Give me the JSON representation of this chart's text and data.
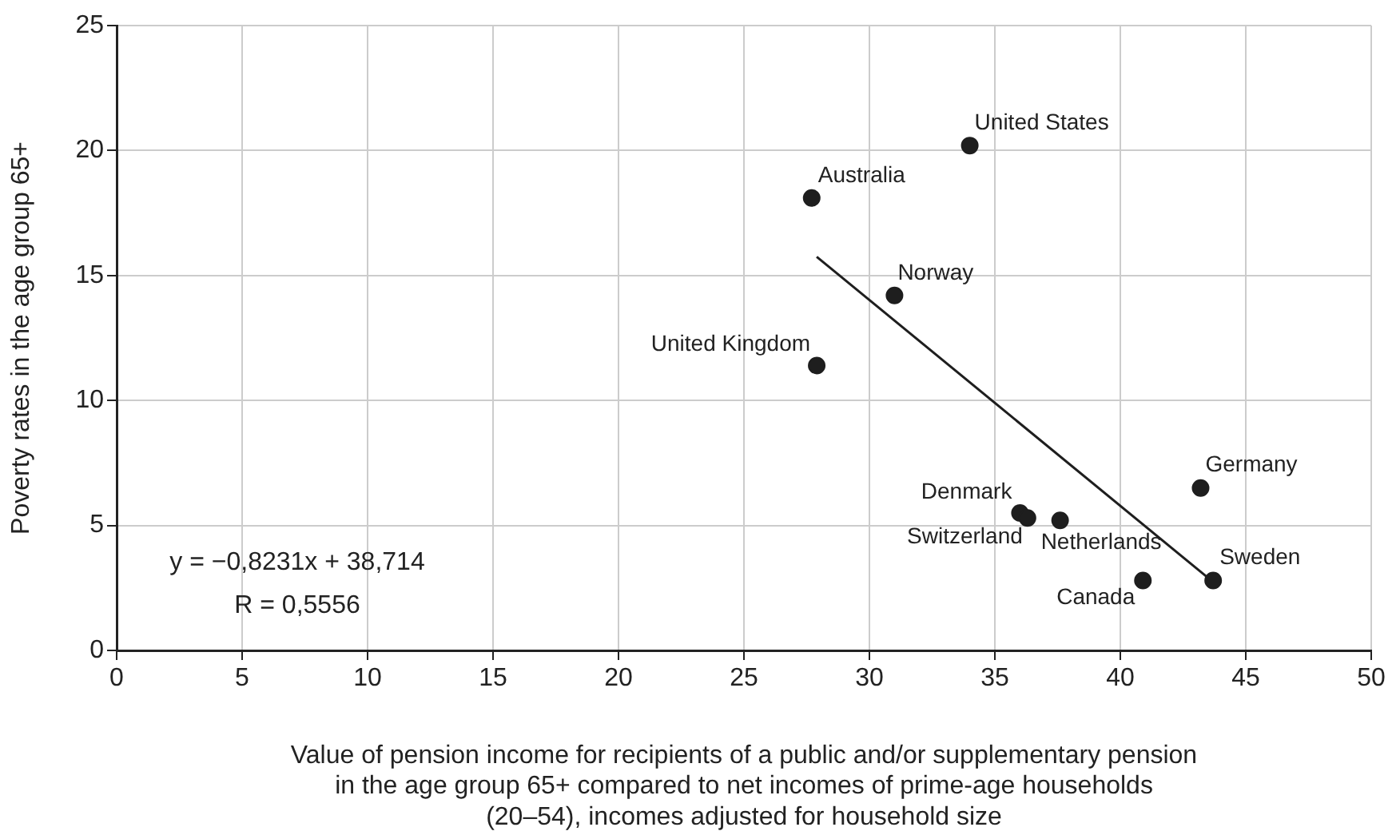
{
  "chart_data": {
    "type": "scatter",
    "xlabel": "Value of pension income for recipients of a public and/or supplementary pension\nin the age group 65+ compared to net incomes of prime-age households\n(20–54), incomes adjusted for household size",
    "ylabel": "Poverty rates in the age group 65+",
    "x": [
      27.7,
      34.0,
      31.0,
      27.9,
      36.0,
      36.3,
      37.6,
      43.2,
      40.9,
      43.7
    ],
    "series": [
      {
        "type": "scatter",
        "color": "#1e1e1e",
        "values": [
          18.1,
          20.2,
          14.2,
          11.4,
          5.5,
          5.3,
          5.2,
          6.5,
          2.8,
          2.8
        ]
      },
      {
        "type": "line",
        "color": "#1e1e1e",
        "x": [
          27.9,
          43.7
        ],
        "values": [
          15.75,
          2.74
        ],
        "marker": "none"
      }
    ],
    "annotations": [
      {
        "text": "Australia",
        "x": 27.7,
        "y": 18.1
      },
      {
        "text": "United States",
        "x": 34.0,
        "y": 20.2
      },
      {
        "text": "Norway",
        "x": 31.0,
        "y": 14.2
      },
      {
        "text": "United Kingdom",
        "x": 27.9,
        "y": 11.4
      },
      {
        "text": "Denmark",
        "x": 36.0,
        "y": 5.5
      },
      {
        "text": "Switzerland",
        "x": 36.3,
        "y": 5.3
      },
      {
        "text": "Netherlands",
        "x": 37.6,
        "y": 5.2
      },
      {
        "text": "Germany",
        "x": 43.2,
        "y": 6.5
      },
      {
        "text": "Canada",
        "x": 40.9,
        "y": 2.8
      },
      {
        "text": "Sweden",
        "x": 43.7,
        "y": 2.8
      },
      "y = −0,8231x + 38,714",
      "R = 0,5556"
    ],
    "xlim": [
      0,
      50
    ],
    "xticks": [
      0,
      5,
      10,
      15,
      20,
      25,
      30,
      35,
      40,
      45,
      50
    ],
    "ylim": [
      0,
      25
    ],
    "yticks": [
      0,
      5,
      10,
      15,
      20,
      25
    ],
    "grid": true,
    "legend": false,
    "marker": "circle"
  }
}
